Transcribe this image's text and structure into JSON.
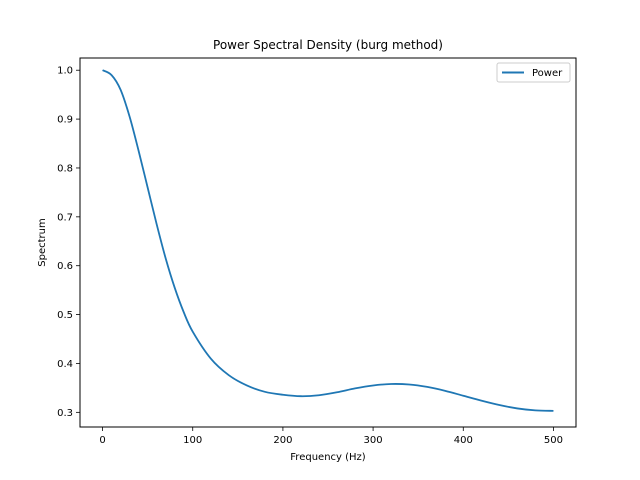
{
  "chart_data": {
    "type": "line",
    "title": "Power Spectral Density (burg method)",
    "xlabel": "Frequency (Hz)",
    "ylabel": "Spectrum",
    "xlim": [
      -25,
      525
    ],
    "ylim": [
      0.27,
      1.025
    ],
    "xticks": [
      0,
      100,
      200,
      300,
      400,
      500
    ],
    "yticks": [
      0.3,
      0.4,
      0.5,
      0.6,
      0.7,
      0.8,
      0.9,
      1.0
    ],
    "ytick_labels": [
      "0.3",
      "0.4",
      "0.5",
      "0.6",
      "0.7",
      "0.8",
      "0.9",
      "1.0"
    ],
    "grid": false,
    "legend": {
      "position": "top-right"
    },
    "series": [
      {
        "name": "Power",
        "color": "#1f77b4",
        "x": [
          0,
          10,
          20,
          30,
          40,
          50,
          60,
          70,
          80,
          90,
          100,
          120,
          140,
          160,
          180,
          200,
          220,
          240,
          260,
          280,
          300,
          320,
          340,
          360,
          380,
          400,
          420,
          440,
          460,
          480,
          500
        ],
        "y": [
          1.0,
          0.99,
          0.96,
          0.905,
          0.835,
          0.76,
          0.685,
          0.615,
          0.555,
          0.505,
          0.465,
          0.41,
          0.376,
          0.355,
          0.342,
          0.336,
          0.333,
          0.335,
          0.341,
          0.349,
          0.355,
          0.358,
          0.357,
          0.352,
          0.344,
          0.334,
          0.324,
          0.315,
          0.308,
          0.304,
          0.303
        ]
      }
    ]
  }
}
